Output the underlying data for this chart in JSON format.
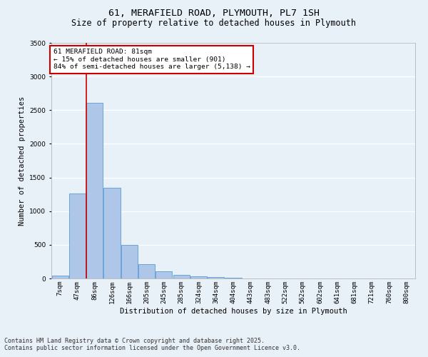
{
  "title_line1": "61, MERAFIELD ROAD, PLYMOUTH, PL7 1SH",
  "title_line2": "Size of property relative to detached houses in Plymouth",
  "xlabel": "Distribution of detached houses by size in Plymouth",
  "ylabel": "Number of detached properties",
  "categories": [
    "7sqm",
    "47sqm",
    "86sqm",
    "126sqm",
    "166sqm",
    "205sqm",
    "245sqm",
    "285sqm",
    "324sqm",
    "364sqm",
    "404sqm",
    "443sqm",
    "483sqm",
    "522sqm",
    "562sqm",
    "602sqm",
    "641sqm",
    "681sqm",
    "721sqm",
    "760sqm",
    "800sqm"
  ],
  "values": [
    45,
    1260,
    2610,
    1350,
    500,
    215,
    110,
    55,
    30,
    18,
    10,
    5,
    2,
    0,
    0,
    0,
    0,
    0,
    0,
    0,
    0
  ],
  "bar_color": "#aec6e8",
  "bar_edge_color": "#5b9bd5",
  "ylim": [
    0,
    3500
  ],
  "yticks": [
    0,
    500,
    1000,
    1500,
    2000,
    2500,
    3000,
    3500
  ],
  "vline_x": 1.5,
  "annotation_text_line1": "61 MERAFIELD ROAD: 81sqm",
  "annotation_text_line2": "← 15% of detached houses are smaller (901)",
  "annotation_text_line3": "84% of semi-detached houses are larger (5,138) →",
  "annotation_box_color": "#ffffff",
  "annotation_box_edge_color": "#cc0000",
  "vline_color": "#cc0000",
  "bg_color": "#e8f0f8",
  "footer_line1": "Contains HM Land Registry data © Crown copyright and database right 2025.",
  "footer_line2": "Contains public sector information licensed under the Open Government Licence v3.0.",
  "grid_color": "#ffffff",
  "title_fontsize": 9.5,
  "subtitle_fontsize": 8.5,
  "axis_label_fontsize": 7.5,
  "tick_fontsize": 6.5,
  "annotation_fontsize": 6.8,
  "footer_fontsize": 6.0
}
